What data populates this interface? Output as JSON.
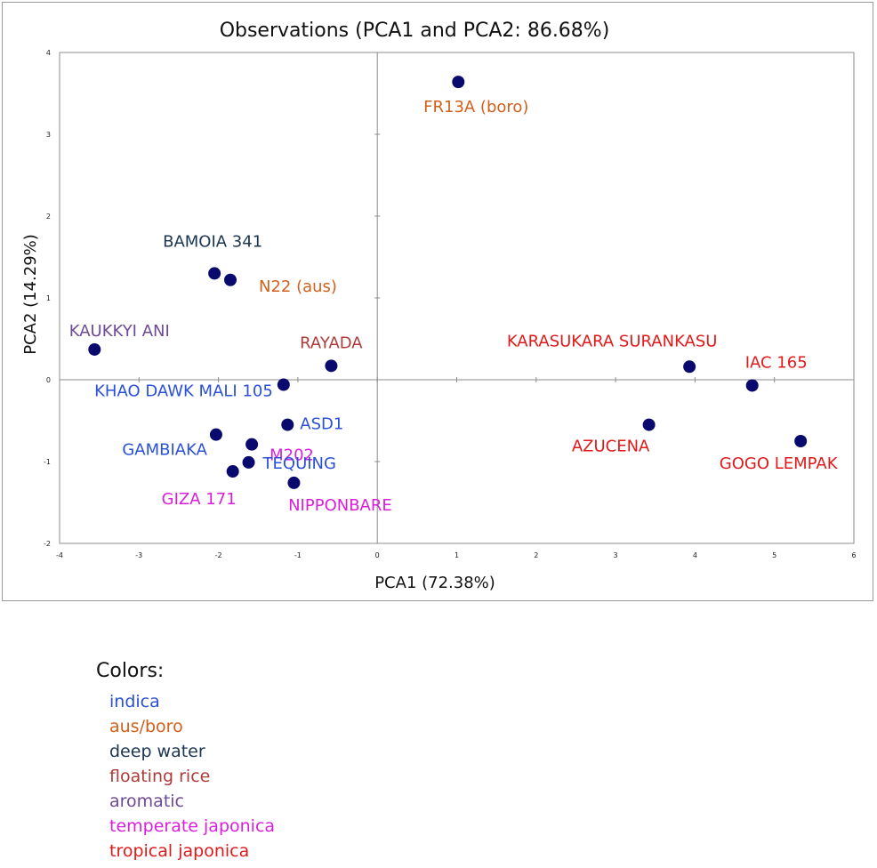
{
  "chart_data": {
    "type": "scatter",
    "title": "Observations (PCA1 and PCA2: 86.68%)",
    "xlabel": "PCA1 (72.38%)",
    "ylabel": "PCA2 (14.29%)",
    "xlim": [
      -4,
      6
    ],
    "ylim": [
      -2,
      4
    ],
    "xticks": [
      -4,
      -3,
      -2,
      -1,
      0,
      1,
      2,
      3,
      4,
      5,
      6
    ],
    "yticks": [
      -2,
      -1,
      0,
      1,
      2,
      3,
      4
    ],
    "grid": false,
    "point_color": "#0a0a6e",
    "points": [
      {
        "label": "FR13A (boro)",
        "x": 1.02,
        "y": 3.64,
        "group": "aus/boro"
      },
      {
        "label": "BAMOIA 341",
        "x": -2.05,
        "y": 1.3,
        "group": "deep water"
      },
      {
        "label": "N22 (aus)",
        "x": -1.85,
        "y": 1.22,
        "group": "aus/boro"
      },
      {
        "label": "KAUKKYI ANI",
        "x": -3.56,
        "y": 0.37,
        "group": "aromatic"
      },
      {
        "label": "RAYADA",
        "x": -0.58,
        "y": 0.17,
        "group": "floating rice"
      },
      {
        "label": "KHAO DAWK MALI 105",
        "x": -1.18,
        "y": -0.06,
        "group": "indica"
      },
      {
        "label": "ASD1",
        "x": -1.13,
        "y": -0.55,
        "group": "indica"
      },
      {
        "label": "GAMBIAKA",
        "x": -2.03,
        "y": -0.67,
        "group": "indica"
      },
      {
        "label": "M202",
        "x": -1.58,
        "y": -0.79,
        "group": "temperate japonica"
      },
      {
        "label": "TEQUING",
        "x": -1.62,
        "y": -1.01,
        "group": "indica"
      },
      {
        "label": "GIZA 171",
        "x": -1.82,
        "y": -1.12,
        "group": "temperate japonica"
      },
      {
        "label": "NIPPONBARE",
        "x": -1.05,
        "y": -1.26,
        "group": "temperate japonica"
      },
      {
        "label": "KARASUKARA SURANKASU",
        "x": 3.93,
        "y": 0.16,
        "group": "tropical japonica"
      },
      {
        "label": "IAC 165",
        "x": 4.72,
        "y": -0.07,
        "group": "tropical japonica"
      },
      {
        "label": "AZUCENA",
        "x": 3.42,
        "y": -0.55,
        "group": "tropical japonica"
      },
      {
        "label": "GOGO LEMPAK",
        "x": 5.33,
        "y": -0.75,
        "group": "tropical japonica"
      }
    ]
  },
  "legend": {
    "title": "Colors:",
    "items": [
      {
        "label": "indica",
        "color": "#2a50d8"
      },
      {
        "label": "aus/boro",
        "color": "#d2601c"
      },
      {
        "label": "deep water",
        "color": "#1b3552"
      },
      {
        "label": "floating rice",
        "color": "#b03a3a"
      },
      {
        "label": "aromatic",
        "color": "#6e4a96"
      },
      {
        "label": "temperate japonica",
        "color": "#d91fd9"
      },
      {
        "label": "tropical japonica",
        "color": "#e01a1a"
      }
    ]
  }
}
